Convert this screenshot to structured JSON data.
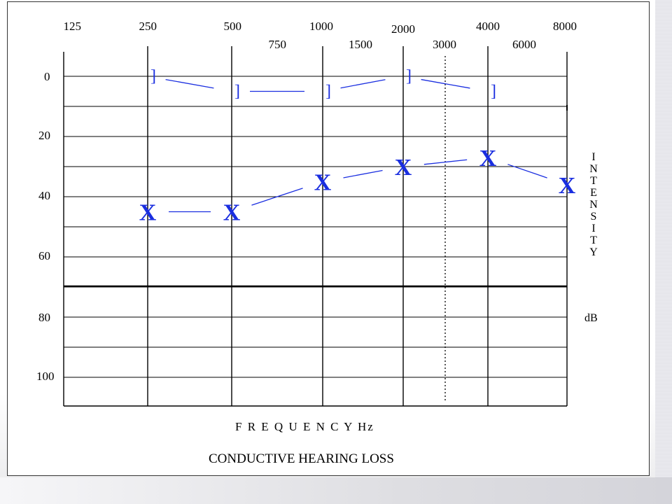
{
  "chart_data": {
    "type": "line",
    "title": "CONDUCTIVE HEARING LOSS",
    "xlabel": "F R E Q U E N C Y  Hz",
    "ylabel": "I N T E N S I T Y",
    "ylabel_unit": "dB",
    "x_scale": "log2",
    "y_inverted": true,
    "ylim": [
      -8,
      110
    ],
    "x_ticks_top": [
      "125",
      "250",
      "500",
      "1000",
      "2000",
      "4000",
      "8000"
    ],
    "x_ticks_mid": [
      "750",
      "1500",
      "3000",
      "6000"
    ],
    "y_ticks": [
      "0",
      "20",
      "40",
      "60",
      "80",
      "100"
    ],
    "grid": true,
    "reference_line_db": 70,
    "dotted_line_hz": 3000,
    "series": [
      {
        "symbol": "]",
        "color": "#1a2ee0",
        "x": [
          250,
          500,
          1000,
          2000,
          4000
        ],
        "y": [
          0,
          5,
          5,
          0,
          5
        ]
      },
      {
        "symbol": "X",
        "color": "#1a2ee0",
        "x": [
          250,
          500,
          1000,
          2000,
          4000,
          8000
        ],
        "y": [
          45,
          45,
          35,
          30,
          27,
          36
        ]
      }
    ]
  }
}
